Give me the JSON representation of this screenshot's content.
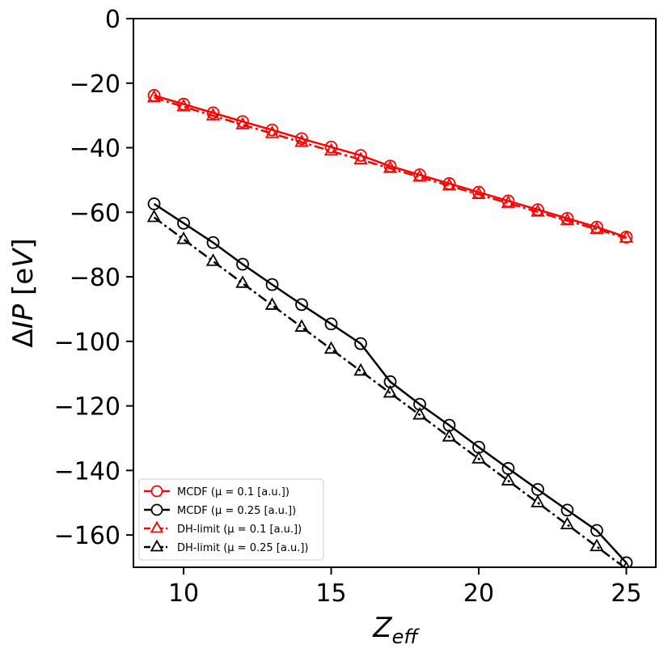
{
  "chart_data": {
    "type": "line",
    "xlabel": "Z_eff",
    "ylabel": "ΔIP [eV]",
    "xlim": [
      8.3,
      26.0
    ],
    "ylim": [
      -170,
      0
    ],
    "x_ticks": [
      10,
      15,
      20,
      25
    ],
    "x_tick_labels": [
      "10",
      "15",
      "20",
      "25"
    ],
    "y_ticks": [
      0,
      -20,
      -40,
      -60,
      -80,
      -100,
      -120,
      -140,
      -160
    ],
    "y_tick_labels": [
      "0",
      "−20",
      "−40",
      "−60",
      "−80",
      "−100",
      "−120",
      "−140",
      "−160"
    ],
    "grid": false,
    "legend_position": "bottom-left",
    "x": [
      9,
      10,
      11,
      12,
      13,
      14,
      15,
      16,
      17,
      18,
      19,
      20,
      21,
      22,
      23,
      24,
      25
    ],
    "series": [
      {
        "name": "MCDF (μ = 0.1 [a.u.])",
        "color": "#ff0000",
        "marker": "circle",
        "line_style": "solid",
        "values": [
          -23.8,
          -26.5,
          -29.2,
          -31.9,
          -34.5,
          -37.2,
          -39.8,
          -42.4,
          -45.7,
          -48.4,
          -51.1,
          -53.8,
          -56.5,
          -59.2,
          -61.9,
          -64.6,
          -67.7
        ]
      },
      {
        "name": "MCDF (μ = 0.25 [a.u.])",
        "color": "#000000",
        "marker": "circle",
        "line_style": "solid",
        "values": [
          -57.4,
          -63.4,
          -69.4,
          -76.1,
          -82.4,
          -88.6,
          -94.6,
          -100.7,
          -112.5,
          -119.5,
          -126.0,
          -132.8,
          -139.4,
          -145.9,
          -152.3,
          -158.6,
          -168.6
        ]
      },
      {
        "name": "DH-limit (μ = 0.1 [a.u.])",
        "color": "#ff0000",
        "marker": "triangle",
        "line_style": "dashdot",
        "values": [
          -24.5,
          -27.3,
          -30.1,
          -32.9,
          -35.6,
          -38.3,
          -41.0,
          -43.7,
          -46.4,
          -49.1,
          -51.8,
          -54.5,
          -57.2,
          -59.9,
          -62.6,
          -65.3,
          -68.0
        ]
      },
      {
        "name": "DH-limit (μ = 0.25 [a.u.])",
        "color": "#000000",
        "marker": "triangle",
        "line_style": "dashdot",
        "values": [
          -61.6,
          -68.4,
          -75.2,
          -82.0,
          -88.8,
          -95.6,
          -102.4,
          -109.2,
          -116.0,
          -122.8,
          -129.6,
          -136.4,
          -143.2,
          -150.0,
          -156.8,
          -163.6,
          -170.5
        ]
      }
    ]
  }
}
